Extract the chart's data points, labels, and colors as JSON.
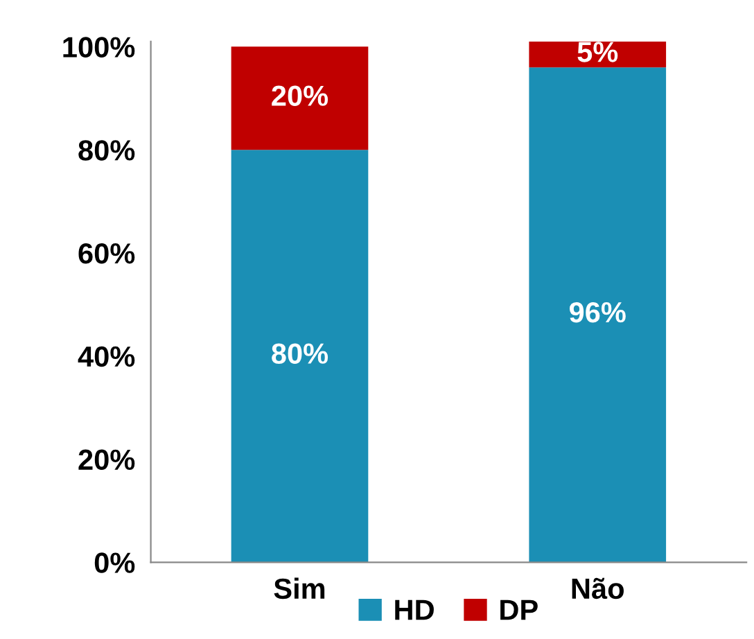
{
  "chart_data": {
    "type": "bar",
    "stacked": true,
    "categories": [
      "Sim",
      "Não"
    ],
    "series": [
      {
        "name": "HD",
        "color": "#1b8fb5",
        "values": [
          80,
          96
        ],
        "value_labels": [
          "80%",
          "96%"
        ]
      },
      {
        "name": "DP",
        "color": "#c00000",
        "values": [
          20,
          5
        ],
        "value_labels": [
          "20%",
          "5%"
        ]
      }
    ],
    "ylim": [
      0,
      101
    ],
    "yticks": [
      {
        "value": 0,
        "label": "0%"
      },
      {
        "value": 20,
        "label": "20%"
      },
      {
        "value": 40,
        "label": "40%"
      },
      {
        "value": 60,
        "label": "60%"
      },
      {
        "value": 80,
        "label": "80%"
      },
      {
        "value": 100,
        "label": "100%"
      }
    ],
    "grid": false,
    "legend": "bottom"
  }
}
